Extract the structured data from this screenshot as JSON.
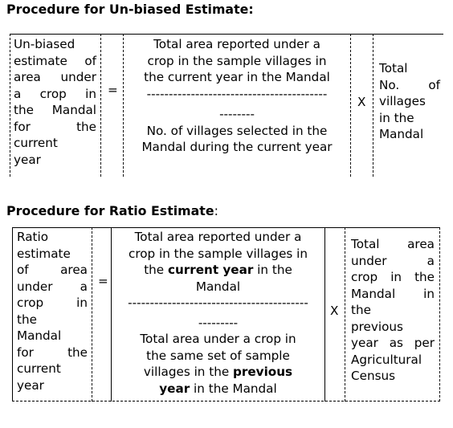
{
  "section1": {
    "heading": "Procedure for Un-biased Estimate:",
    "left_lines": [
      "Un-biased",
      "estimate of",
      "area under",
      "a crop in",
      "the Mandal",
      "for the",
      "current",
      "year"
    ],
    "equals": "=",
    "numerator": [
      "Total area reported under a",
      "crop in the sample villages in",
      "the current year in the Mandal"
    ],
    "fraction_bar": [
      "-----------------------------------------",
      "--------"
    ],
    "denominator": [
      "No. of villages selected in the",
      "Mandal during the current year"
    ],
    "times": "X",
    "right_lines": [
      "Total",
      "No. of",
      "villages",
      "in the",
      "Mandal"
    ]
  },
  "section2": {
    "heading_bold": "Procedure for Ratio Estimate",
    "heading_tail": ":",
    "left_lines": [
      "Ratio",
      "estimate",
      "of area",
      "under a",
      "crop in",
      "the",
      "Mandal",
      "for the",
      "current",
      "year"
    ],
    "equals": "=",
    "numerator": {
      "line1": "Total area reported under a",
      "line2": "crop in the sample villages in",
      "line3_pre": "the ",
      "line3_bold": "current year",
      "line3_post": " in the",
      "line4": "Mandal"
    },
    "fraction_bar": [
      "-----------------------------------------",
      "---------"
    ],
    "denominator": {
      "line1": "Total area under a crop in",
      "line2": "the same set of sample",
      "line3_pre": "villages in the ",
      "line3_bold": "previous",
      "line4_bold": "year",
      "line4_post": " in the Mandal"
    },
    "times": "X",
    "right_lines": [
      "Total area",
      "under a",
      "crop in the",
      "Mandal in",
      "the",
      "previous",
      "year as per",
      "Agricultural",
      "Census"
    ]
  }
}
